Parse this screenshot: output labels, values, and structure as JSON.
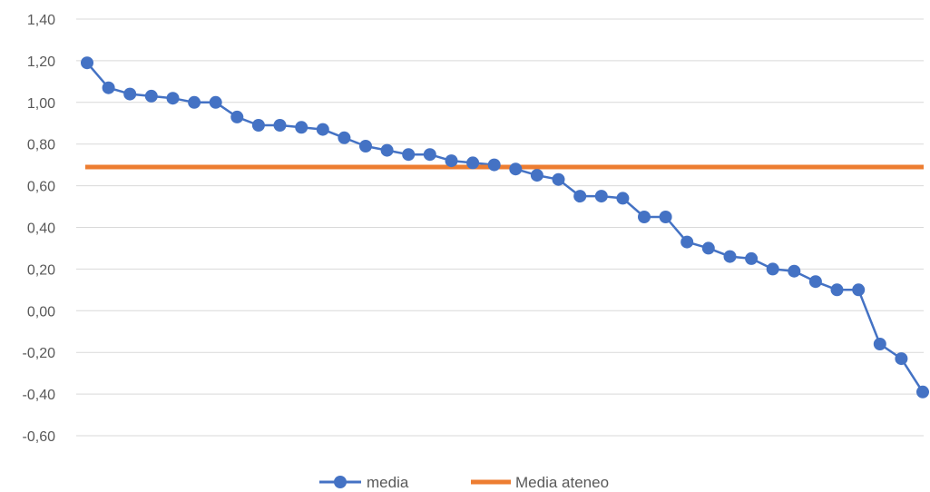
{
  "chart_data": {
    "type": "line",
    "title": "",
    "xlabel": "",
    "ylabel": "",
    "ylim": [
      -0.6,
      1.4
    ],
    "yticks": [
      "1,40",
      "1,20",
      "1,00",
      "0,80",
      "0,60",
      "0,40",
      "0,20",
      "0,00",
      "-0,20",
      "-0,40",
      "-0,60"
    ],
    "grid": true,
    "legend_position": "bottom",
    "series": [
      {
        "name": "media",
        "color": "#4472c4",
        "marker": "circle",
        "values": [
          1.19,
          1.07,
          1.04,
          1.03,
          1.02,
          1.0,
          1.0,
          0.93,
          0.89,
          0.89,
          0.88,
          0.87,
          0.83,
          0.79,
          0.77,
          0.75,
          0.75,
          0.72,
          0.71,
          0.7,
          0.68,
          0.65,
          0.63,
          0.55,
          0.55,
          0.54,
          0.45,
          0.45,
          0.33,
          0.3,
          0.26,
          0.25,
          0.2,
          0.19,
          0.14,
          0.1,
          0.1,
          -0.16,
          -0.23,
          -0.39
        ]
      },
      {
        "name": "Media ateneo",
        "color": "#ed7d31",
        "value": 0.69
      }
    ]
  }
}
